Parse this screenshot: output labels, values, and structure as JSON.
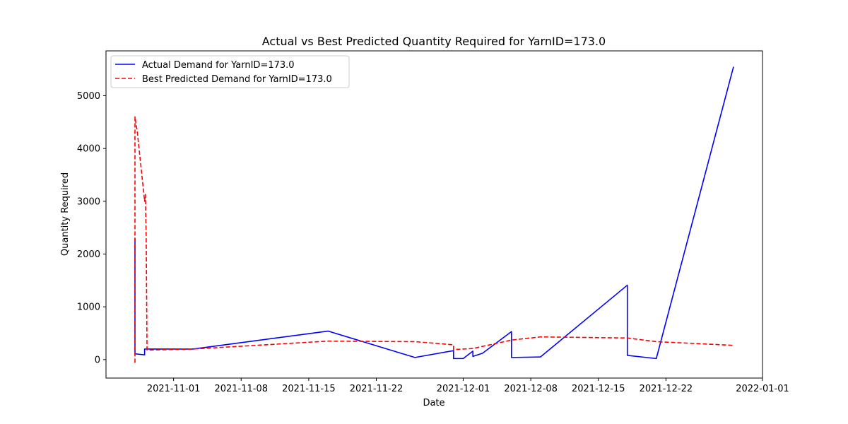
{
  "chart_data": {
    "type": "line",
    "title": "Actual vs Best Predicted Quantity Required for YarnID=173.0",
    "xlabel": "Date",
    "ylabel": "Quantity Required",
    "x_axis_type": "date",
    "xlim": [
      "2021-10-25T00:00",
      "2022-01-01T00:00"
    ],
    "ylim": [
      -350,
      5850
    ],
    "x_ticks": [
      "2021-11-01",
      "2021-11-08",
      "2021-11-15",
      "2021-11-22",
      "2021-12-01",
      "2021-12-08",
      "2021-12-15",
      "2021-12-22",
      "2022-01-01"
    ],
    "y_ticks": [
      0,
      1000,
      2000,
      3000,
      4000,
      5000
    ],
    "grid": false,
    "legend_position": "top-left",
    "colors": {
      "actual": "#0000ff",
      "predicted": "#ff0000"
    },
    "series": [
      {
        "name": "Actual Demand for YarnID=173.0",
        "style": "solid",
        "color": "#0000ff",
        "points": [
          [
            "2021-10-28T00:00",
            120
          ],
          [
            "2021-10-28T00:00",
            2300
          ],
          [
            "2021-10-28T00:00",
            110
          ],
          [
            "2021-10-29T00:00",
            90
          ],
          [
            "2021-10-29T00:00",
            200
          ],
          [
            "2021-11-03T00:00",
            200
          ],
          [
            "2021-11-17T00:00",
            540
          ],
          [
            "2021-11-26T00:00",
            40
          ],
          [
            "2021-11-30T00:00",
            170
          ],
          [
            "2021-11-30T00:00",
            20
          ],
          [
            "2021-12-01T00:00",
            20
          ],
          [
            "2021-12-02T00:00",
            160
          ],
          [
            "2021-12-02T00:00",
            60
          ],
          [
            "2021-12-03T00:00",
            120
          ],
          [
            "2021-12-06T00:00",
            530
          ],
          [
            "2021-12-06T00:00",
            40
          ],
          [
            "2021-12-09T00:00",
            50
          ],
          [
            "2021-12-18T00:00",
            1410
          ],
          [
            "2021-12-18T00:00",
            80
          ],
          [
            "2021-12-21T00:00",
            20
          ],
          [
            "2021-12-29T00:00",
            5550
          ]
        ]
      },
      {
        "name": "Best Predicted Demand for YarnID=173.0",
        "style": "dashed",
        "color": "#ff0000",
        "points": [
          [
            "2021-10-28T00:00",
            -60
          ],
          [
            "2021-10-28T00:00",
            4600
          ],
          [
            "2021-10-28T06:00",
            4300
          ],
          [
            "2021-10-29T00:00",
            3000
          ],
          [
            "2021-10-29T02:00",
            3130
          ],
          [
            "2021-10-29T04:00",
            2250
          ],
          [
            "2021-10-29T06:00",
            180
          ],
          [
            "2021-11-03T00:00",
            200
          ],
          [
            "2021-11-17T00:00",
            350
          ],
          [
            "2021-11-26T00:00",
            340
          ],
          [
            "2021-11-30T00:00",
            280
          ],
          [
            "2021-11-30T00:00",
            190
          ],
          [
            "2021-12-02T00:00",
            210
          ],
          [
            "2021-12-06T00:00",
            370
          ],
          [
            "2021-12-09T00:00",
            430
          ],
          [
            "2021-12-18T00:00",
            410
          ],
          [
            "2021-12-21T00:00",
            340
          ],
          [
            "2021-12-29T00:00",
            270
          ]
        ]
      }
    ]
  }
}
